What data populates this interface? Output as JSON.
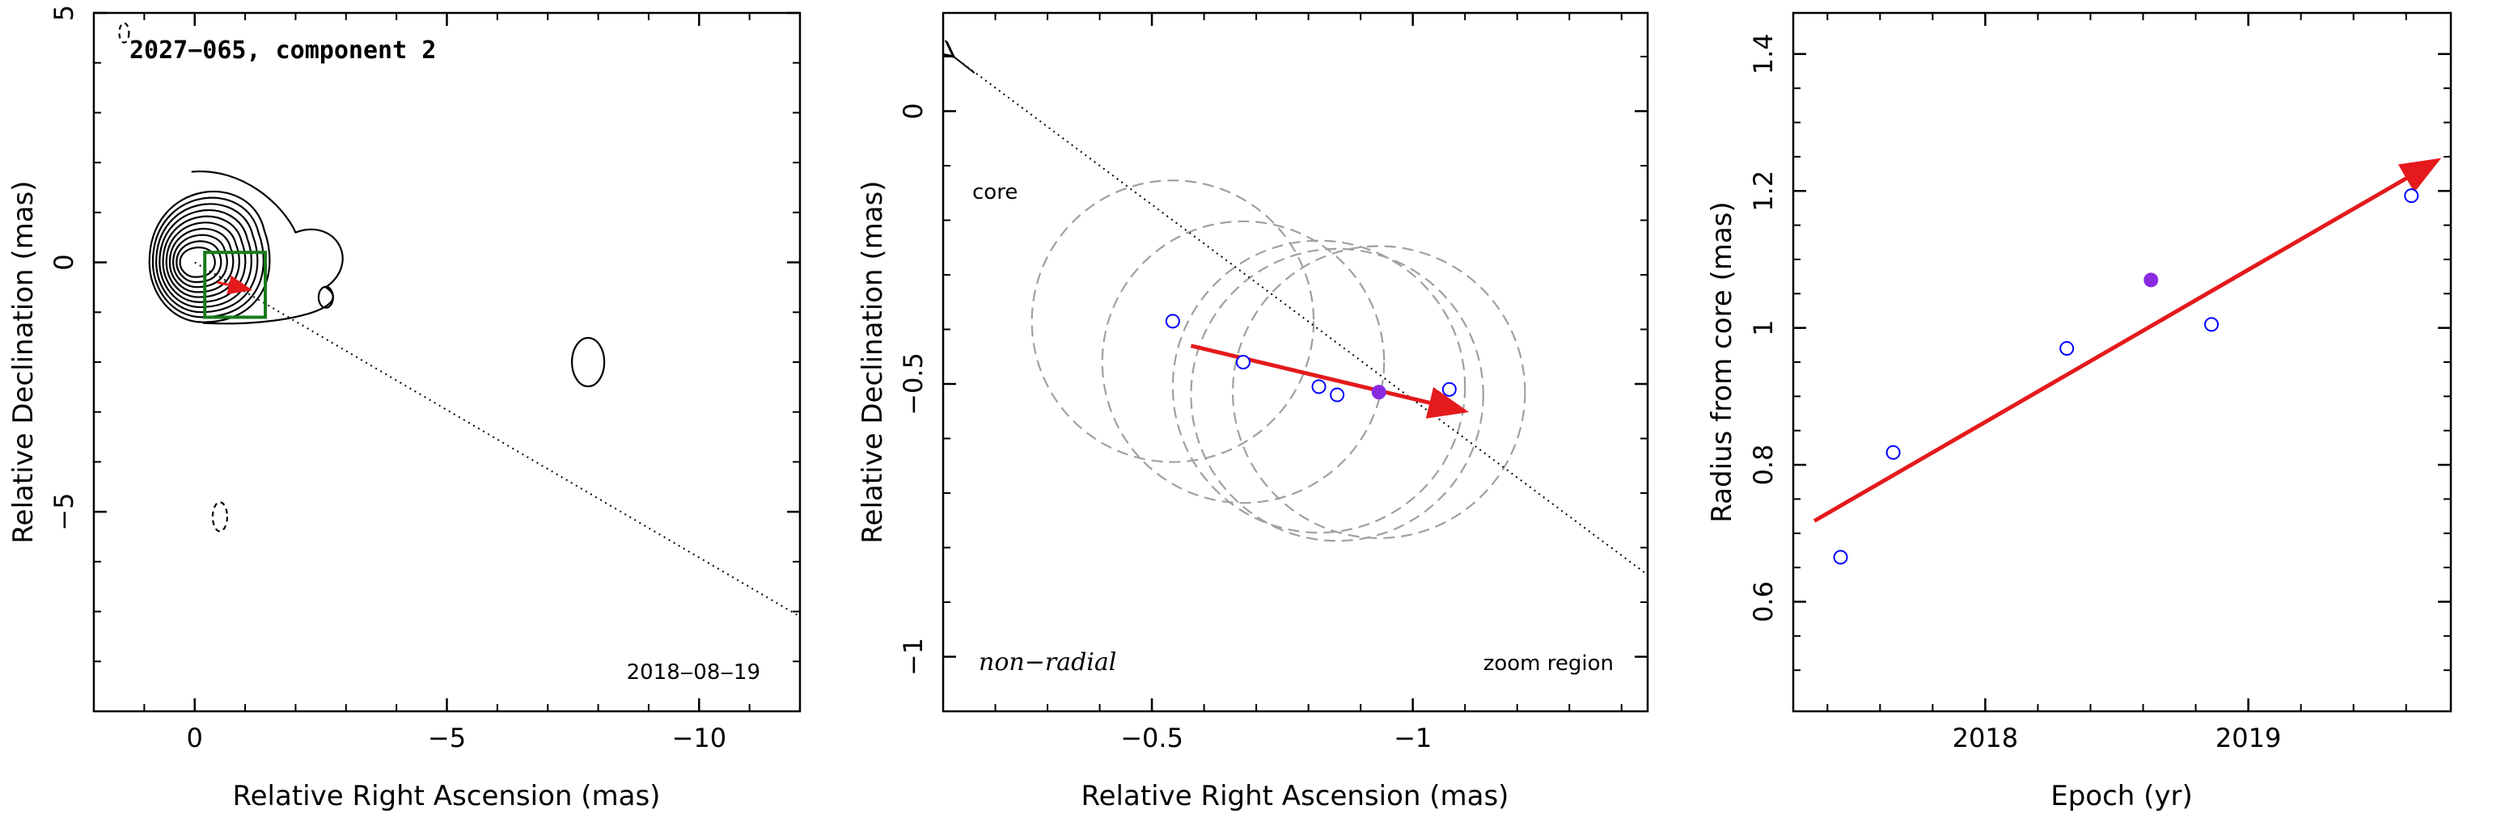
{
  "chart_data": [
    {
      "type": "contour",
      "title": "2027−065, component 2",
      "epoch_label": "2018‒08‒19",
      "xlabel": "Relative Right Ascension (mas)",
      "ylabel": "Relative Declination (mas)",
      "xlim": [
        2,
        -12
      ],
      "ylim": [
        -9,
        5
      ],
      "xticks": [
        {
          "v": 0,
          "label": "0"
        },
        {
          "v": -5,
          "label": "−5"
        },
        {
          "v": -10,
          "label": "−10"
        }
      ],
      "yticks": [
        {
          "v": 5,
          "label": "5"
        },
        {
          "v": 0,
          "label": "0"
        },
        {
          "v": -5,
          "label": "−5"
        }
      ],
      "contour_levels": 10,
      "core_position": [
        0,
        0
      ],
      "zoom_box": {
        "x": [
          -0.2,
          -1.4
        ],
        "y": [
          0.2,
          -1.1
        ]
      },
      "direction_line": {
        "from": [
          0,
          0
        ],
        "to": [
          -12,
          -7.1
        ]
      },
      "motion_arrow": {
        "from": [
          -0.45,
          -0.4
        ],
        "to": [
          -1.1,
          -0.55
        ]
      },
      "colors": {
        "contour": "#000000",
        "zoom_box": "#1a7a1a",
        "arrow": "#e41a1c"
      }
    },
    {
      "type": "scatter",
      "xlabel": "Relative Right Ascension (mas)",
      "ylabel": "Relative Declination (mas)",
      "xlim": [
        -0.1,
        -1.45
      ],
      "ylim": [
        -1.1,
        0.18
      ],
      "xticks": [
        {
          "v": -0.5,
          "label": "−0.5"
        },
        {
          "v": -1,
          "label": "−1"
        }
      ],
      "yticks": [
        {
          "v": 0,
          "label": "0"
        },
        {
          "v": -0.5,
          "label": "−0.5"
        },
        {
          "v": -1,
          "label": "−1"
        }
      ],
      "points": [
        {
          "x": -0.54,
          "y": -0.385,
          "filled": false
        },
        {
          "x": -0.675,
          "y": -0.46,
          "filled": false
        },
        {
          "x": -0.82,
          "y": -0.505,
          "filled": false
        },
        {
          "x": -0.855,
          "y": -0.52,
          "filled": false
        },
        {
          "x": -0.935,
          "y": -0.515,
          "filled": true
        },
        {
          "x": -1.07,
          "y": -0.51,
          "filled": false
        }
      ],
      "circles": [
        {
          "x": -0.54,
          "y": -0.385,
          "r": 0.27
        },
        {
          "x": -0.675,
          "y": -0.46,
          "r": 0.27
        },
        {
          "x": -0.82,
          "y": -0.505,
          "r": 0.28
        },
        {
          "x": -0.855,
          "y": -0.52,
          "r": 0.28
        },
        {
          "x": -0.935,
          "y": -0.515,
          "r": 0.28
        }
      ],
      "motion_arrow": {
        "from": [
          -0.575,
          -0.43
        ],
        "to": [
          -1.1,
          -0.55
        ]
      },
      "direction_line": {
        "from": [
          -0.12,
          0.1
        ],
        "to": [
          -1.45,
          -0.85
        ]
      },
      "core_label": "core",
      "left_label": "non−radial",
      "right_label": "zoom region",
      "colors": {
        "points": "#0000ff",
        "filled_point": "#8a2be2",
        "circles": "#a0a0a0",
        "arrow": "#e41a1c"
      }
    },
    {
      "type": "scatter",
      "xlabel": "Epoch (yr)",
      "ylabel": "Radius from core (mas)",
      "xlim": [
        2017.27,
        2019.77
      ],
      "ylim": [
        0.44,
        1.46
      ],
      "xticks": [
        {
          "v": 2018,
          "label": "2018"
        },
        {
          "v": 2019,
          "label": "2019"
        }
      ],
      "yticks": [
        {
          "v": 0.6,
          "label": "0.6"
        },
        {
          "v": 0.8,
          "label": "0.8"
        },
        {
          "v": 1,
          "label": "1"
        },
        {
          "v": 1.2,
          "label": "1.2"
        },
        {
          "v": 1.4,
          "label": "1.4"
        }
      ],
      "points": [
        {
          "x": 2017.45,
          "y": 0.665,
          "filled": false
        },
        {
          "x": 2017.65,
          "y": 0.818,
          "filled": false
        },
        {
          "x": 2018.31,
          "y": 0.97,
          "filled": false
        },
        {
          "x": 2018.63,
          "y": 1.07,
          "filled": true
        },
        {
          "x": 2018.86,
          "y": 1.005,
          "filled": false
        },
        {
          "x": 2019.62,
          "y": 1.193,
          "filled": false
        }
      ],
      "fit_arrow": {
        "from": [
          2017.35,
          0.718
        ],
        "to": [
          2019.72,
          1.245
        ]
      },
      "colors": {
        "points": "#0000ff",
        "filled_point": "#8a2be2",
        "arrow": "#e41a1c"
      }
    }
  ]
}
